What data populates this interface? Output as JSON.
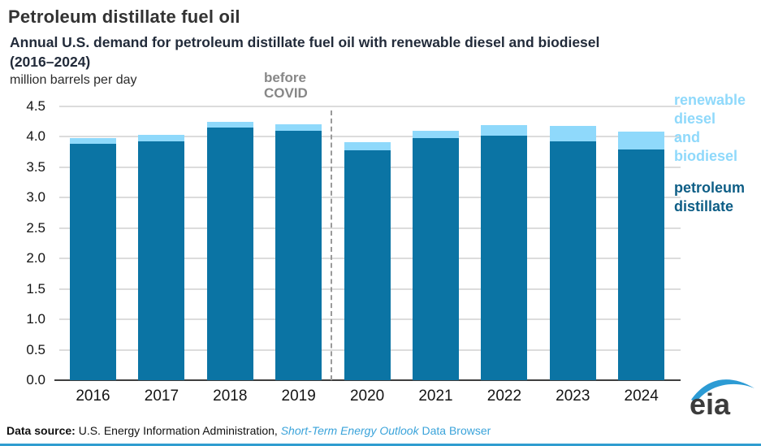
{
  "header": {
    "title": "Petroleum distillate fuel oil",
    "subtitle_lines": [
      "Annual U.S. demand for petroleum distillate fuel oil with renewable diesel and biodiesel",
      "(2016–2024)"
    ],
    "units": "million barrels per day"
  },
  "annotations": {
    "before_covid": "before\nCOVID"
  },
  "legend": {
    "renewable_label": "renewable\ndiesel\nand\nbiodiesel",
    "petroleum_label": "petroleum\ndistillate"
  },
  "footer": {
    "label": "Data source:",
    "source": " U.S. Energy Information Administration, ",
    "link_italic": "Short-Term Energy Outlook",
    "link_rest": " Data Browser"
  },
  "logo": {
    "text": "eia"
  },
  "colors": {
    "petroleum_bar": "#0b74a4",
    "renewable_bar": "#8fd9fb",
    "gridline": "#dcdcdc",
    "axis": "#3f3f3f",
    "divider": "#9a9a9a",
    "link_blue": "#3aa3da",
    "logo_swoosh": "#2c9bd4"
  },
  "chart_data": {
    "type": "bar",
    "stacked": true,
    "title": "Annual U.S. demand for petroleum distillate fuel oil with renewable diesel and biodiesel (2016–2024)",
    "ylabel": "million barrels per day",
    "xlabel": "",
    "categories": [
      "2016",
      "2017",
      "2018",
      "2019",
      "2020",
      "2021",
      "2022",
      "2023",
      "2024"
    ],
    "series": [
      {
        "name": "petroleum distillate",
        "color": "#0b74a4",
        "values": [
          3.89,
          3.93,
          4.15,
          4.1,
          3.78,
          3.98,
          4.02,
          3.92,
          3.79
        ]
      },
      {
        "name": "renewable diesel and biodiesel",
        "color": "#8fd9fb",
        "values": [
          0.09,
          0.1,
          0.1,
          0.11,
          0.13,
          0.12,
          0.17,
          0.26,
          0.3
        ]
      }
    ],
    "totals": [
      3.98,
      4.03,
      4.25,
      4.21,
      3.91,
      4.1,
      4.19,
      4.18,
      4.09
    ],
    "ylim": [
      0,
      4.5
    ],
    "ytick_step": 0.5,
    "grid": true,
    "legend_position": "right",
    "divider_after_category": "2019",
    "divider_label": "before COVID"
  }
}
